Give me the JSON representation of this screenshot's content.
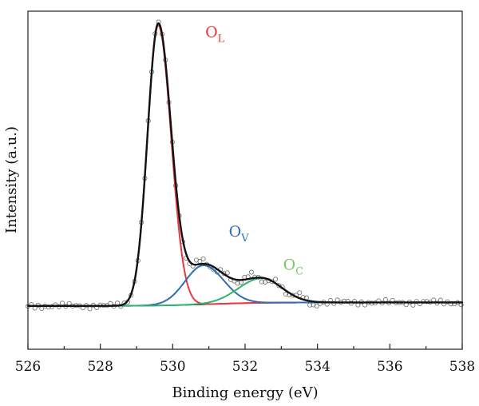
{
  "chart_data": {
    "type": "line",
    "title": "",
    "xlabel": "Binding energy (eV)",
    "ylabel": "Intensity (a.u.)",
    "xlim": [
      526,
      538
    ],
    "ylim": [
      -0.15,
      1.02
    ],
    "xticks": [
      "526",
      "528",
      "530",
      "532",
      "534",
      "536",
      "538"
    ],
    "grid": false,
    "legend": "none",
    "baseline": {
      "a": 0.0,
      "b": 0.012
    },
    "peaks": [
      {
        "name_main": "O",
        "name_sub": "L",
        "center": 529.6,
        "amplitude": 0.97,
        "width_left": 0.42,
        "width_right": 0.5,
        "color": "#e8383d"
      },
      {
        "name_main": "O",
        "name_sub": "V",
        "center": 530.85,
        "amplitude": 0.135,
        "width_left": 0.72,
        "width_right": 0.78,
        "color": "#2e6db4"
      },
      {
        "name_main": "O",
        "name_sub": "C",
        "center": 532.45,
        "amplitude": 0.085,
        "width_left": 0.9,
        "width_right": 0.8,
        "color": "#2fb36e"
      }
    ],
    "envelope_color": "#111111",
    "baseline_color": "#111111",
    "points_color": "#7a7a7a",
    "annotations": [
      {
        "main": "O",
        "sub": "L",
        "x": 530.9,
        "y": 0.93,
        "color": "#e8383d"
      },
      {
        "main": "O",
        "sub": "V",
        "x": 531.55,
        "y": 0.24,
        "color": "#2e6db4"
      },
      {
        "main": "O",
        "sub": "C",
        "x": 533.05,
        "y": 0.125,
        "color": "#7cc46a"
      }
    ]
  }
}
